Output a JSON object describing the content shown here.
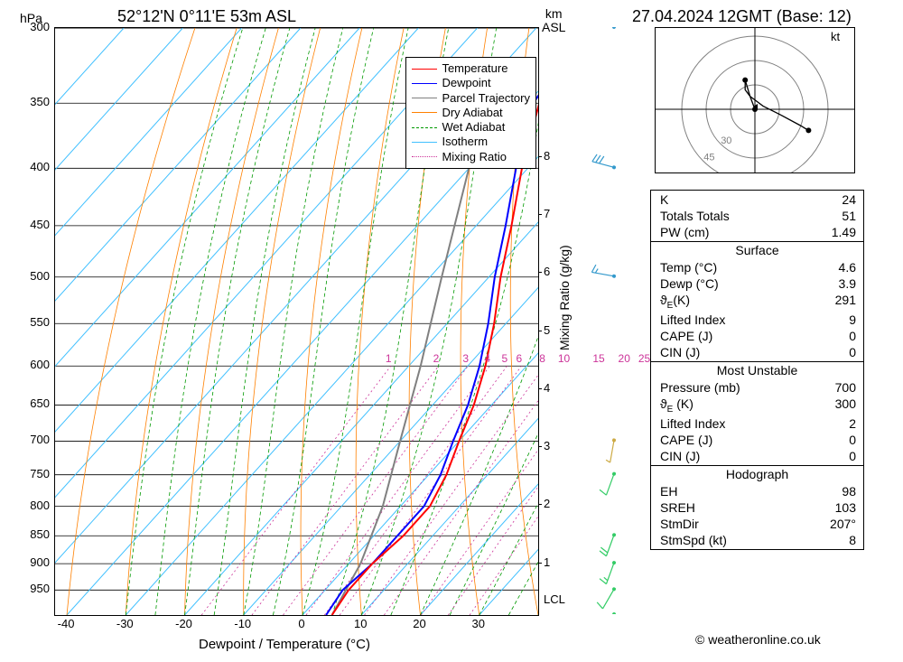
{
  "title_left": "52°12'N 0°11'E 53m ASL",
  "title_right": "27.04.2024 12GMT (Base: 12)",
  "copyright": "© weatheronline.co.uk",
  "kt_label": "kt",
  "chart": {
    "type": "skewt",
    "x_axis": {
      "label": "Dewpoint / Temperature (°C)",
      "label_left": "hPa",
      "label_right_top": "km",
      "label_right_bottom": "ASL",
      "label_mixing": "Mixing Ratio (g/kg)",
      "ticks": [
        -40,
        -30,
        -20,
        -10,
        0,
        10,
        20,
        30
      ],
      "xmin": -42,
      "xmax": 40
    },
    "pressure_levels": [
      300,
      350,
      400,
      450,
      500,
      550,
      600,
      650,
      700,
      750,
      800,
      850,
      900,
      950
    ],
    "pressure_range": [
      1000,
      300
    ],
    "altitude_ticks": [
      1,
      2,
      3,
      4,
      5,
      6,
      7,
      8
    ],
    "lcl_label": "LCL",
    "mixing_ratio_labels": [
      1,
      2,
      3,
      4,
      5,
      6,
      8,
      10,
      15,
      20,
      25
    ],
    "legend": [
      {
        "label": "Temperature",
        "color": "#ff0000",
        "style": "solid"
      },
      {
        "label": "Dewpoint",
        "color": "#0000ff",
        "style": "solid"
      },
      {
        "label": "Parcel Trajectory",
        "color": "#808080",
        "style": "solid"
      },
      {
        "label": "Dry Adiabat",
        "color": "#ff8000",
        "style": "solid"
      },
      {
        "label": "Wet Adiabat",
        "color": "#009900",
        "style": "dashed"
      },
      {
        "label": "Isotherm",
        "color": "#40c0ff",
        "style": "solid"
      },
      {
        "label": "Mixing Ratio",
        "color": "#cc3399",
        "style": "dotted"
      }
    ],
    "colors": {
      "isotherm": "#40c0ff",
      "dry_adiabat": "#ff8000",
      "wet_adiabat": "#009900",
      "mixing_ratio": "#cc3399",
      "temperature": "#ff0000",
      "dewpoint": "#0000ff",
      "parcel": "#808080",
      "grid": "#000000"
    },
    "temperature_profile": [
      {
        "p": 1000,
        "t": 5
      },
      {
        "p": 950,
        "t": 4
      },
      {
        "p": 900,
        "t": 4
      },
      {
        "p": 850,
        "t": 5
      },
      {
        "p": 800,
        "t": 5
      },
      {
        "p": 750,
        "t": 3
      },
      {
        "p": 700,
        "t": 0
      },
      {
        "p": 650,
        "t": -3
      },
      {
        "p": 600,
        "t": -7
      },
      {
        "p": 550,
        "t": -12
      },
      {
        "p": 500,
        "t": -18
      },
      {
        "p": 450,
        "t": -24
      },
      {
        "p": 400,
        "t": -31
      },
      {
        "p": 350,
        "t": -38
      },
      {
        "p": 300,
        "t": -42
      }
    ],
    "dewpoint_profile": [
      {
        "p": 1000,
        "t": 4
      },
      {
        "p": 950,
        "t": 3
      },
      {
        "p": 900,
        "t": 4
      },
      {
        "p": 850,
        "t": 4
      },
      {
        "p": 800,
        "t": 4
      },
      {
        "p": 750,
        "t": 2
      },
      {
        "p": 700,
        "t": -1
      },
      {
        "p": 650,
        "t": -4
      },
      {
        "p": 600,
        "t": -8
      },
      {
        "p": 550,
        "t": -13
      },
      {
        "p": 500,
        "t": -19
      },
      {
        "p": 450,
        "t": -25
      },
      {
        "p": 400,
        "t": -32
      },
      {
        "p": 350,
        "t": -39
      },
      {
        "p": 300,
        "t": -42
      }
    ],
    "parcel_profile": [
      {
        "p": 1000,
        "t": 5
      },
      {
        "p": 900,
        "t": 2
      },
      {
        "p": 800,
        "t": -3
      },
      {
        "p": 700,
        "t": -10
      },
      {
        "p": 600,
        "t": -18
      },
      {
        "p": 500,
        "t": -28
      },
      {
        "p": 400,
        "t": -40
      },
      {
        "p": 350,
        "t": -42
      }
    ],
    "wind_barbs": [
      {
        "p": 1000,
        "dir": 200,
        "spd": 10
      },
      {
        "p": 950,
        "dir": 210,
        "spd": 10
      },
      {
        "p": 900,
        "dir": 200,
        "spd": 15
      },
      {
        "p": 850,
        "dir": 200,
        "spd": 20
      },
      {
        "p": 750,
        "dir": 200,
        "spd": 10
      },
      {
        "p": 700,
        "dir": 190,
        "spd": 5
      },
      {
        "p": 500,
        "dir": 280,
        "spd": 15
      },
      {
        "p": 400,
        "dir": 285,
        "spd": 30
      },
      {
        "p": 300,
        "dir": 290,
        "spd": 35
      }
    ]
  },
  "hodograph": {
    "rings": [
      15,
      30,
      45
    ],
    "ring_labels": [
      "45",
      "30"
    ],
    "points": [
      {
        "x": 0,
        "y": 0
      },
      {
        "x": -3,
        "y": 8
      },
      {
        "x": -6,
        "y": 12
      },
      {
        "x": -6,
        "y": 18
      },
      {
        "x": -3,
        "y": 8
      },
      {
        "x": 5,
        "y": 2
      },
      {
        "x": 15,
        "y": -3
      },
      {
        "x": 28,
        "y": -10
      },
      {
        "x": 33,
        "y": -13
      }
    ],
    "marker_color": "#000000",
    "line_color": "#000000",
    "ring_color": "#808080"
  },
  "info": {
    "top": [
      {
        "label": "K",
        "value": "24"
      },
      {
        "label": "Totals Totals",
        "value": "51"
      },
      {
        "label": "PW (cm)",
        "value": "1.49"
      }
    ],
    "surface_header": "Surface",
    "surface": [
      {
        "label": "Temp (°C)",
        "value": "4.6"
      },
      {
        "label": "Dewp (°C)",
        "value": "3.9"
      },
      {
        "label": "θ_E(K)",
        "value": "291"
      },
      {
        "label": "Lifted Index",
        "value": "9"
      },
      {
        "label": "CAPE (J)",
        "value": "0"
      },
      {
        "label": "CIN (J)",
        "value": "0"
      }
    ],
    "unstable_header": "Most Unstable",
    "unstable": [
      {
        "label": "Pressure (mb)",
        "value": "700"
      },
      {
        "label": "θ_E (K)",
        "value": "300"
      },
      {
        "label": "Lifted Index",
        "value": "2"
      },
      {
        "label": "CAPE (J)",
        "value": "0"
      },
      {
        "label": "CIN (J)",
        "value": "0"
      }
    ],
    "hodograph_header": "Hodograph",
    "hodograph": [
      {
        "label": "EH",
        "value": "98"
      },
      {
        "label": "SREH",
        "value": "103"
      },
      {
        "label": "StmDir",
        "value": "207°"
      },
      {
        "label": "StmSpd (kt)",
        "value": "8"
      }
    ]
  }
}
